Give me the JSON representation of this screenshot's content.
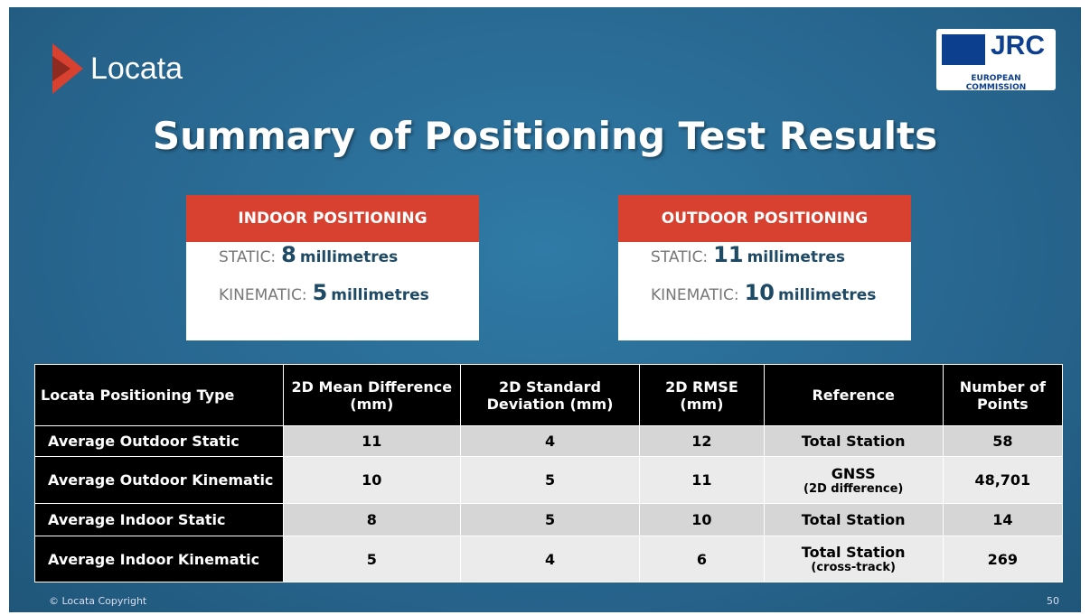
{
  "header": {
    "logo": "Locata",
    "partner": {
      "name": "JRC",
      "subtitle": "EUROPEAN COMMISSION"
    },
    "title": "Summary of Positioning Test Results"
  },
  "boxes": [
    {
      "title": "INDOOR POSITIONING",
      "lines": [
        {
          "label": "STATIC:",
          "value": "8",
          "unit": "millimetres"
        },
        {
          "label": "KINEMATIC:",
          "value": "5",
          "unit": "millimetres"
        }
      ]
    },
    {
      "title": "OUTDOOR POSITIONING",
      "lines": [
        {
          "label": "STATIC:",
          "value": "11",
          "unit": "millimetres"
        },
        {
          "label": "KINEMATIC:",
          "value": "10",
          "unit": "millimetres"
        }
      ]
    }
  ],
  "table": {
    "columns": [
      "Locata Positioning Type",
      "2D Mean Difference (mm)",
      "2D Standard Deviation (mm)",
      "2D RMSE (mm)",
      "Reference",
      "Number of Points"
    ],
    "rows": [
      {
        "type": "Average Outdoor Static",
        "mean": "11",
        "std": "4",
        "rmse": "12",
        "reference": "Total Station",
        "points": "58"
      },
      {
        "type": "Average Outdoor Kinematic",
        "mean": "10",
        "std": "5",
        "rmse": "11",
        "reference": "GNSS",
        "reference_note": "(2D difference)",
        "points": "48,701"
      },
      {
        "type": "Average Indoor Static",
        "mean": "8",
        "std": "5",
        "rmse": "10",
        "reference": "Total Station",
        "points": "14"
      },
      {
        "type": "Average Indoor Kinematic",
        "mean": "5",
        "std": "4",
        "rmse": "6",
        "reference": "Total Station",
        "reference_note": "(cross-track)",
        "points": "269"
      }
    ]
  },
  "footer": {
    "copyright": "© Locata Copyright",
    "page": "50"
  }
}
